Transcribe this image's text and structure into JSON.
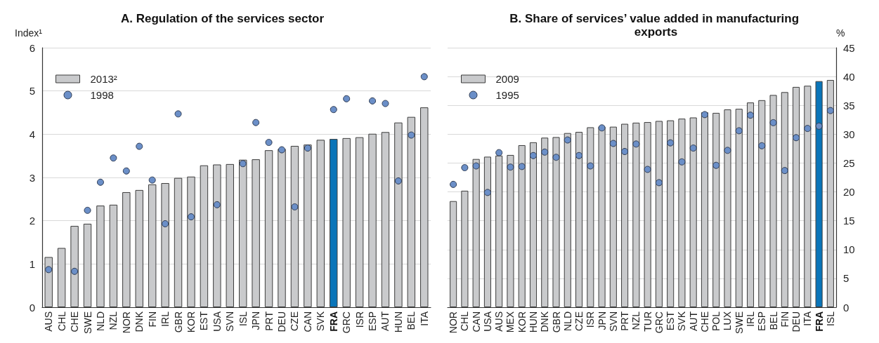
{
  "chart_data": [
    {
      "type": "bar",
      "title": "A. Regulation of the services sector",
      "ylabel": "Index¹",
      "categories": [
        "AUS",
        "CHL",
        "CHE",
        "SWE",
        "NLD",
        "NZL",
        "NOR",
        "DNK",
        "FIN",
        "IRL",
        "GBR",
        "KOR",
        "EST",
        "USA",
        "SVN",
        "ISL",
        "JPN",
        "PRT",
        "DEU",
        "CZE",
        "CAN",
        "SVK",
        "FRA",
        "GRC",
        "ISR",
        "ESP",
        "AUT",
        "HUN",
        "BEL",
        "ITA"
      ],
      "series": [
        {
          "name": "2013²",
          "color": "#c9cacc",
          "values": [
            1.16,
            1.37,
            1.88,
            1.93,
            2.35,
            2.37,
            2.66,
            2.71,
            2.84,
            2.87,
            2.99,
            3.02,
            3.28,
            3.3,
            3.31,
            3.41,
            3.42,
            3.63,
            3.66,
            3.73,
            3.76,
            3.87,
            3.89,
            3.91,
            3.93,
            4.01,
            4.05,
            4.27,
            4.4,
            4.62
          ],
          "colors": [
            "#c9cacc",
            "#c9cacc",
            "#c9cacc",
            "#c9cacc",
            "#c9cacc",
            "#c9cacc",
            "#c9cacc",
            "#c9cacc",
            "#c9cacc",
            "#c9cacc",
            "#c9cacc",
            "#c9cacc",
            "#c9cacc",
            "#c9cacc",
            "#c9cacc",
            "#c9cacc",
            "#c9cacc",
            "#c9cacc",
            "#c9cacc",
            "#c9cacc",
            "#c9cacc",
            "#c9cacc",
            "#0a75b9",
            "#c9cacc",
            "#c9cacc",
            "#c9cacc",
            "#c9cacc",
            "#c9cacc",
            "#c9cacc",
            "#c9cacc"
          ]
        },
        {
          "name": "1998",
          "type": "scatter",
          "color": "#6b8fc8",
          "values": [
            0.87,
            null,
            0.83,
            2.24,
            2.89,
            3.45,
            3.15,
            3.72,
            2.94,
            1.93,
            4.47,
            2.09,
            null,
            2.37,
            null,
            3.32,
            4.27,
            3.81,
            3.64,
            2.32,
            3.68,
            null,
            4.57,
            4.82,
            null,
            4.77,
            4.71,
            2.92,
            3.98,
            5.33
          ]
        }
      ],
      "ylim": [
        0,
        6
      ],
      "yticks": [
        0,
        1,
        2,
        3,
        4,
        5,
        6
      ],
      "grid": "y",
      "legend": "top left",
      "marker": "circle"
    },
    {
      "type": "bar",
      "title": "B. Share of services’ value added in manufacturing exports",
      "y2label": "%",
      "categories": [
        "NOR",
        "CHL",
        "CAN",
        "USA",
        "AUS",
        "MEX",
        "KOR",
        "HUN",
        "DNK",
        "GBR",
        "NLD",
        "CZE",
        "ISR",
        "JPN",
        "SVN",
        "PRT",
        "NZL",
        "TUR",
        "GRC",
        "EST",
        "SVK",
        "AUT",
        "CHE",
        "POL",
        "LUX",
        "SWE",
        "IRL",
        "ESP",
        "BEL",
        "FIN",
        "DEU",
        "ITA",
        "FRA",
        "ISL"
      ],
      "series": [
        {
          "name": "2009",
          "axis": "y2",
          "color": "#c9cacc",
          "values": [
            18.4,
            20.2,
            25.7,
            26.1,
            26.3,
            26.4,
            28.1,
            28.6,
            29.4,
            29.5,
            30.2,
            30.4,
            31.2,
            31.3,
            31.3,
            31.8,
            32.0,
            32.1,
            32.3,
            32.4,
            32.7,
            32.9,
            33.8,
            33.7,
            34.3,
            34.4,
            35.5,
            35.9,
            36.8,
            37.3,
            38.2,
            38.4,
            39.2,
            39.4
          ],
          "colors": [
            "#c9cacc",
            "#c9cacc",
            "#c9cacc",
            "#c9cacc",
            "#c9cacc",
            "#c9cacc",
            "#c9cacc",
            "#c9cacc",
            "#c9cacc",
            "#c9cacc",
            "#c9cacc",
            "#c9cacc",
            "#c9cacc",
            "#c9cacc",
            "#c9cacc",
            "#c9cacc",
            "#c9cacc",
            "#c9cacc",
            "#c9cacc",
            "#c9cacc",
            "#c9cacc",
            "#c9cacc",
            "#c9cacc",
            "#c9cacc",
            "#c9cacc",
            "#c9cacc",
            "#c9cacc",
            "#c9cacc",
            "#c9cacc",
            "#c9cacc",
            "#c9cacc",
            "#c9cacc",
            "#0a75b9",
            "#c9cacc"
          ]
        },
        {
          "name": "1995",
          "type": "scatter",
          "axis": "y2",
          "color": "#6b8fc8",
          "values": [
            21.3,
            24.2,
            24.5,
            19.9,
            26.8,
            24.3,
            24.4,
            26.3,
            26.9,
            26.0,
            29.0,
            26.3,
            24.5,
            31.1,
            28.4,
            27.0,
            28.3,
            23.9,
            21.6,
            28.5,
            25.2,
            27.6,
            33.4,
            24.6,
            27.2,
            30.6,
            33.3,
            28.0,
            32.0,
            23.7,
            29.4,
            31.0,
            31.4,
            34.1
          ]
        }
      ],
      "y2lim": [
        0,
        45
      ],
      "y2ticks": [
        0,
        5,
        10,
        15,
        20,
        25,
        30,
        35,
        40,
        45
      ],
      "grid": "y",
      "legend": "top left",
      "marker": "circle"
    }
  ]
}
